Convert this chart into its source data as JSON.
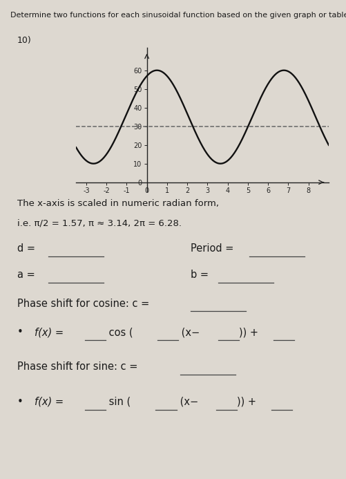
{
  "title": "Determine two functions for each sinusoidal function based on the given graph or table.",
  "problem_number": "10)",
  "graph": {
    "xlim": [
      -3.5,
      9.0
    ],
    "ylim": [
      -5,
      72
    ],
    "xticks": [
      -3,
      -2,
      -1,
      0,
      1,
      2,
      3,
      4,
      5,
      6,
      7,
      8
    ],
    "yticks": [
      0,
      10,
      20,
      30,
      40,
      50,
      60
    ],
    "amplitude": 25,
    "midline": 35,
    "period": 6.2832,
    "phase_shift": 0.5,
    "dashed_line_y": 30,
    "curve_color": "#111111",
    "dashed_color": "#666666",
    "bg_color": "#ddd8d0"
  },
  "note_line1": "The x-axis is scaled in numeric radian form,",
  "note_line2": "i.e. π/2 = 1.57, π ≈ 3.14, 2π = 6.28.",
  "text_color": "#1a1a1a",
  "line_color": "#444444",
  "title_fontsize": 8.0,
  "problem_fontsize": 9.0,
  "note_fontsize": 9.5,
  "field_fontsize": 10.5
}
